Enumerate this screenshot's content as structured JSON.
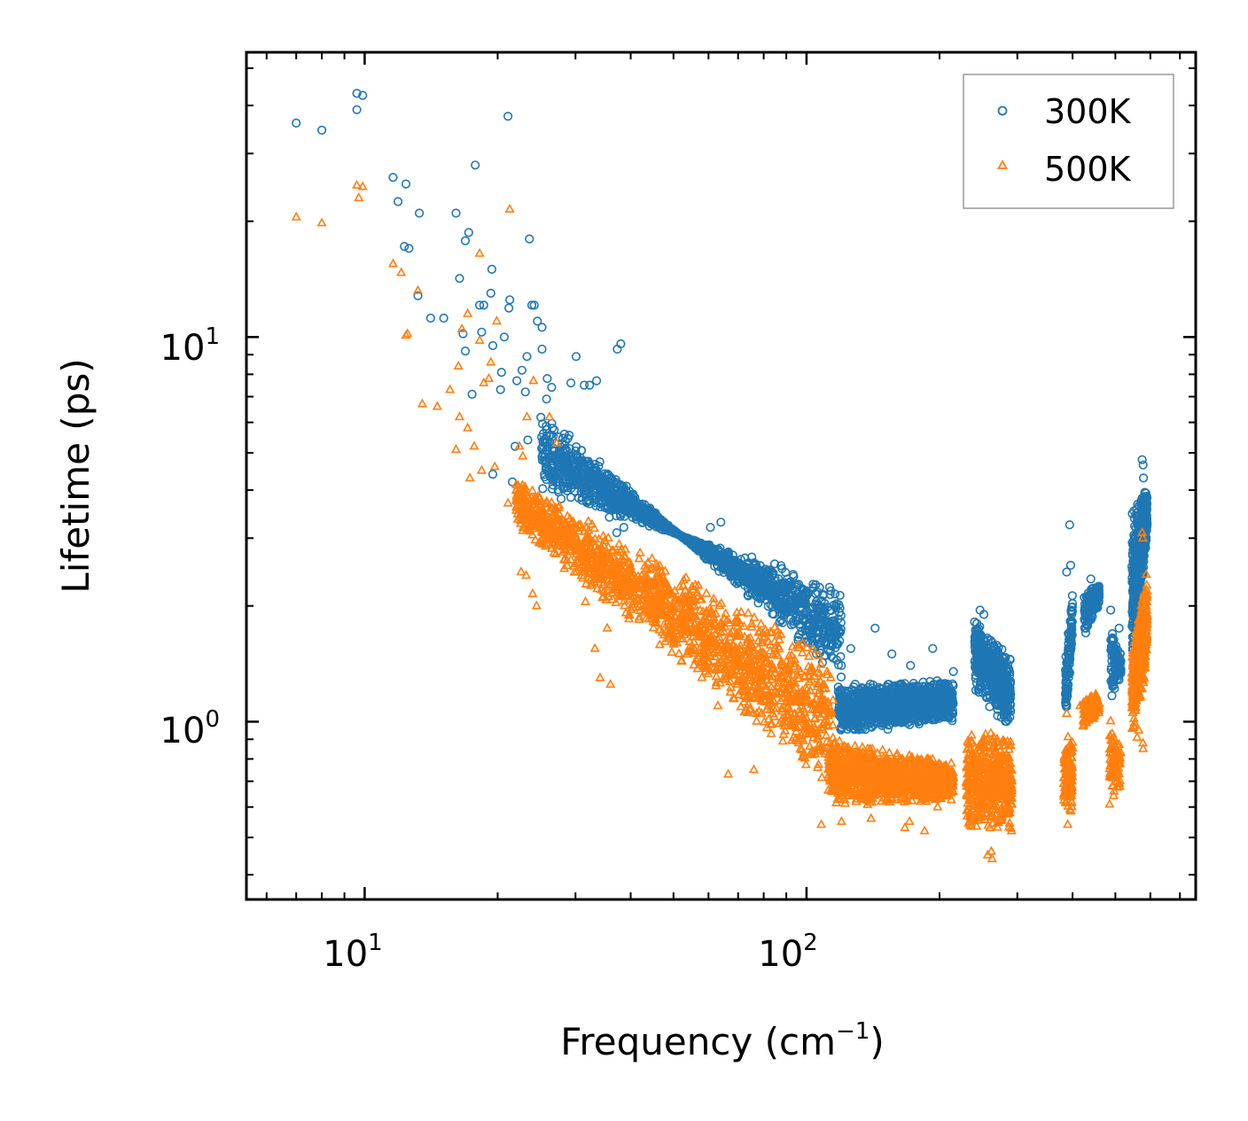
{
  "chart_data": {
    "type": "scatter",
    "xscale": "log",
    "yscale": "log",
    "xlim": [
      5.4,
      760
    ],
    "ylim": [
      0.345,
      55
    ],
    "xlabel": "Frequency (cm",
    "xlabel_sup": "−1",
    "xlabel_tail": ")",
    "ylabel": "Lifetime (ps)",
    "xticks": [
      {
        "base": "10",
        "exp": "1",
        "value": 10
      },
      {
        "base": "10",
        "exp": "2",
        "value": 100
      }
    ],
    "yticks": [
      {
        "base": "10",
        "exp": "0",
        "value": 1
      },
      {
        "base": "10",
        "exp": "1",
        "value": 10
      }
    ],
    "legend": {
      "position": "top-right",
      "entries": [
        "300K",
        "500K"
      ]
    },
    "colors": {
      "300K": "#1f77b4",
      "500K": "#ff7f0e"
    },
    "series": [
      {
        "name": "300K",
        "marker": "circle",
        "color": "#1f77b4",
        "points": [
          [
            7.0,
            36
          ],
          [
            8.0,
            34.5
          ],
          [
            9.6,
            43
          ],
          [
            9.6,
            39
          ],
          [
            9.9,
            42.5
          ],
          [
            11.6,
            26
          ],
          [
            12.4,
            25
          ],
          [
            11.9,
            22.5
          ],
          [
            13.3,
            21
          ],
          [
            12.3,
            17.2
          ],
          [
            12.6,
            17
          ],
          [
            14.1,
            11.2
          ],
          [
            15.1,
            11.2
          ],
          [
            13.2,
            12.8
          ],
          [
            16.1,
            21
          ],
          [
            16.4,
            14.2
          ],
          [
            16.9,
            17.8
          ],
          [
            17.2,
            18.7
          ],
          [
            17.8,
            28
          ],
          [
            16.7,
            10.2
          ],
          [
            16.9,
            9.2
          ],
          [
            18.2,
            12.1
          ],
          [
            18.6,
            12.1
          ],
          [
            19.4,
            15
          ],
          [
            19.3,
            13
          ],
          [
            19.5,
            9.5
          ],
          [
            18.4,
            10.3
          ],
          [
            17.5,
            7.1
          ],
          [
            21.1,
            37.5
          ],
          [
            21.3,
            12.5
          ],
          [
            21.2,
            11.9
          ],
          [
            20.7,
            10
          ],
          [
            20.4,
            8.1
          ],
          [
            20.3,
            7.3
          ],
          [
            22.1,
            7.7
          ],
          [
            22.7,
            8.2
          ],
          [
            23.3,
            8.9
          ],
          [
            23.1,
            7.2
          ],
          [
            23.6,
            18
          ],
          [
            23.9,
            12.1
          ],
          [
            24.2,
            12.1
          ],
          [
            24.6,
            11
          ],
          [
            25.2,
            10.6
          ],
          [
            25.2,
            9.3
          ],
          [
            25.9,
            7.8
          ],
          [
            26.5,
            7.4
          ],
          [
            25.8,
            6.9
          ],
          [
            29.3,
            7.6
          ],
          [
            30.1,
            8.9
          ],
          [
            31.4,
            7.5
          ],
          [
            32.3,
            7.5
          ],
          [
            33.5,
            7.7
          ],
          [
            37.3,
            9.3
          ],
          [
            38.0,
            9.6
          ],
          [
            21.6,
            4.2
          ],
          [
            19.5,
            4.4
          ],
          [
            23.1,
            3.5
          ],
          [
            21.9,
            5.2
          ],
          [
            23.4,
            5.4
          ],
          [
            35.0,
            3.6
          ],
          [
            35.8,
            3.4
          ],
          [
            37.2,
            3.1
          ],
          [
            38.6,
            3.2
          ],
          [
            60.6,
            3.2
          ],
          [
            64.0,
            3.3
          ],
          [
            88.0,
            2.5
          ],
          [
            106.0,
            1.65
          ],
          [
            126.0,
            1.55
          ],
          [
            143.0,
            1.75
          ],
          [
            156.0,
            1.5
          ],
          [
            172.0,
            1.4
          ],
          [
            193.0,
            1.55
          ],
          [
            215.0,
            1.35
          ],
          [
            247.0,
            1.95
          ],
          [
            252.0,
            1.9
          ],
          [
            289.0,
            1.45
          ],
          [
            394.0,
            3.25
          ],
          [
            396.0,
            2.55
          ],
          [
            388.0,
            2.45
          ],
          [
            440.0,
            2.35
          ],
          [
            488.0,
            1.95
          ],
          [
            510.0,
            1.75
          ],
          [
            575.0,
            4.8
          ],
          [
            578.0,
            4.65
          ],
          [
            579.0,
            4.3
          ],
          [
            566.0,
            3.65
          ],
          [
            583.0,
            3.5
          ]
        ],
        "bands": [
          {
            "range": [
              25,
              120
            ],
            "lo_start": 6.6,
            "lo_end": 1.25,
            "hi_start": 3.9,
            "hi_end": 2.3,
            "n": 1700
          },
          {
            "range": [
              118,
              215
            ],
            "lo_start": 0.92,
            "lo_end": 1.0,
            "hi_start": 1.25,
            "hi_end": 1.3,
            "n": 1200
          },
          {
            "range": [
              240,
              290
            ],
            "lo_start": 1.2,
            "lo_end": 0.95,
            "hi_start": 1.9,
            "hi_end": 1.45,
            "n": 500
          },
          {
            "range": [
              385,
              400
            ],
            "lo_start": 0.9,
            "lo_end": 1.6,
            "hi_start": 1.45,
            "hi_end": 2.4,
            "n": 120
          },
          {
            "range": [
              425,
              460
            ],
            "lo_start": 1.65,
            "lo_end": 2.0,
            "hi_start": 2.2,
            "hi_end": 2.3,
            "n": 160
          },
          {
            "range": [
              488,
              515
            ],
            "lo_start": 1.1,
            "lo_end": 1.3,
            "hi_start": 1.85,
            "hi_end": 1.5,
            "n": 90
          },
          {
            "range": [
              545,
              590
            ],
            "lo_start": 1.3,
            "lo_end": 3.0,
            "hi_start": 3.6,
            "hi_end": 4.1,
            "n": 500
          }
        ]
      },
      {
        "name": "500K",
        "marker": "triangle",
        "color": "#ff7f0e",
        "points": [
          [
            7.0,
            20.5
          ],
          [
            8.0,
            19.8
          ],
          [
            9.6,
            24.8
          ],
          [
            9.9,
            24.6
          ],
          [
            9.7,
            23
          ],
          [
            11.6,
            15.5
          ],
          [
            12.1,
            14.7
          ],
          [
            12.5,
            10.2
          ],
          [
            12.4,
            10.1
          ],
          [
            13.2,
            13.2
          ],
          [
            13.5,
            6.7
          ],
          [
            14.6,
            6.6
          ],
          [
            15.6,
            7.3
          ],
          [
            16.3,
            8.4
          ],
          [
            16.6,
            10.5
          ],
          [
            17.1,
            11.5
          ],
          [
            16.4,
            6.2
          ],
          [
            17.1,
            5.8
          ],
          [
            17.7,
            5.2
          ],
          [
            16.1,
            5.1
          ],
          [
            17.3,
            4.3
          ],
          [
            18.2,
            16.5
          ],
          [
            18.2,
            9.8
          ],
          [
            18.6,
            7.6
          ],
          [
            19.1,
            7.8
          ],
          [
            19.3,
            8.6
          ],
          [
            19.9,
            11
          ],
          [
            18.4,
            4.5
          ],
          [
            19.7,
            4.6
          ],
          [
            21.3,
            21.5
          ],
          [
            22.4,
            5.2
          ],
          [
            22.8,
            4.9
          ],
          [
            23.3,
            6.2
          ],
          [
            24.1,
            7.7
          ],
          [
            21.1,
            3.7
          ],
          [
            22.6,
            2.45
          ],
          [
            23.2,
            2.4
          ],
          [
            24.0,
            2.15
          ],
          [
            24.5,
            2.0
          ],
          [
            26.2,
            6.2
          ],
          [
            27.2,
            5.3
          ],
          [
            28.3,
            2.5
          ],
          [
            31.6,
            2.05
          ],
          [
            35.4,
            1.75
          ],
          [
            33.2,
            1.55
          ],
          [
            34.1,
            1.3
          ],
          [
            36.0,
            1.25
          ],
          [
            63.0,
            1.1
          ],
          [
            76.0,
            0.75
          ],
          [
            66.5,
            0.73
          ],
          [
            108.0,
            0.54
          ],
          [
            120.0,
            0.55
          ],
          [
            140.0,
            0.56
          ],
          [
            167.0,
            0.53
          ],
          [
            171.0,
            0.55
          ],
          [
            185.0,
            0.52
          ],
          [
            198.0,
            0.6
          ],
          [
            260.0,
            0.53
          ],
          [
            262.0,
            0.46
          ],
          [
            263.0,
            0.44
          ],
          [
            257.0,
            0.45
          ],
          [
            291.0,
            0.52
          ],
          [
            390.0,
            0.54
          ],
          [
            388.0,
            1.05
          ],
          [
            416.0,
            1.1
          ],
          [
            485.0,
            0.61
          ],
          [
            560.0,
            0.91
          ],
          [
            565.0,
            0.95
          ],
          [
            577.0,
            0.88
          ],
          [
            578.0,
            0.85
          ],
          [
            575.0,
            3.1
          ],
          [
            577.0,
            3.0
          ]
        ],
        "bands": [
          {
            "range": [
              22,
              115
            ],
            "lo_start": 3.2,
            "lo_end": 0.64,
            "hi_start": 4.3,
            "hi_end": 1.5,
            "n": 1700
          },
          {
            "range": [
              112,
              215
            ],
            "lo_start": 0.6,
            "lo_end": 0.62,
            "hi_start": 0.92,
            "hi_end": 0.78,
            "n": 1200
          },
          {
            "range": [
              230,
              292
            ],
            "lo_start": 0.5,
            "lo_end": 0.52,
            "hi_start": 1.0,
            "hi_end": 0.9,
            "n": 500
          },
          {
            "range": [
              382,
              400
            ],
            "lo_start": 0.56,
            "lo_end": 0.56,
            "hi_start": 0.85,
            "hi_end": 1.0,
            "n": 120
          },
          {
            "range": [
              423,
              460
            ],
            "lo_start": 0.95,
            "lo_end": 1.05,
            "hi_start": 1.15,
            "hi_end": 1.2,
            "n": 150
          },
          {
            "range": [
              485,
              515
            ],
            "lo_start": 0.63,
            "lo_end": 0.65,
            "hi_start": 1.05,
            "hi_end": 0.85,
            "n": 90
          },
          {
            "range": [
              545,
              590
            ],
            "lo_start": 0.9,
            "lo_end": 1.4,
            "hi_start": 1.6,
            "hi_end": 2.5,
            "n": 500
          }
        ]
      }
    ]
  }
}
